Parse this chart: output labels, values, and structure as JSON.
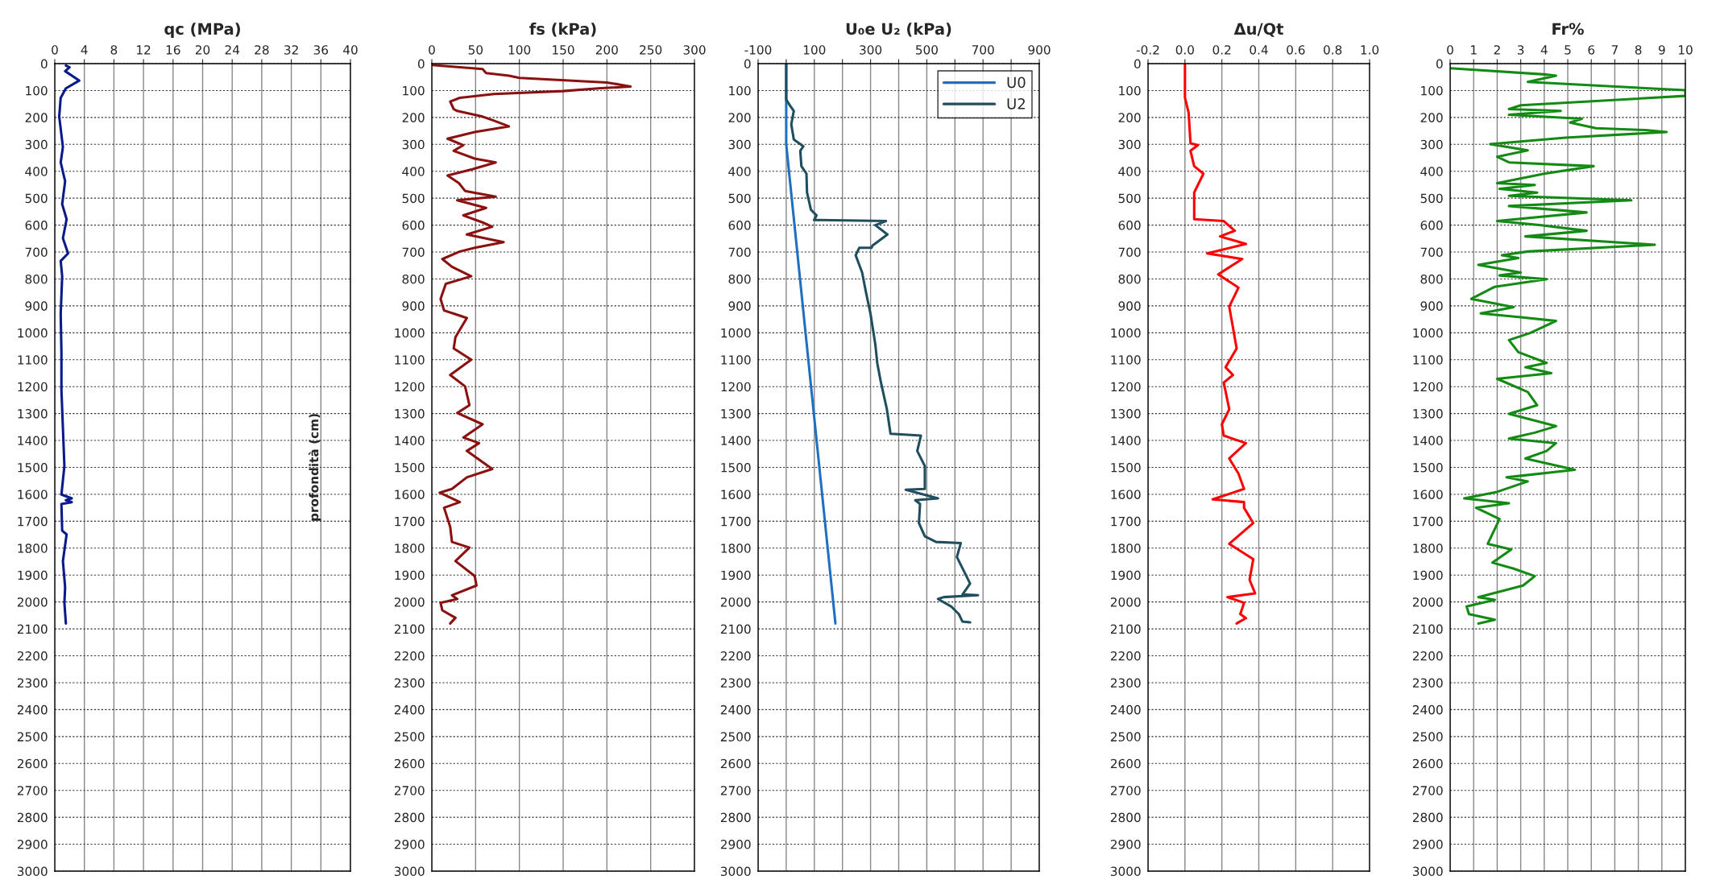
{
  "chart_data": [
    {
      "type": "line",
      "title": "qc (MPa)",
      "ylabel": "profondità (cm)",
      "orientation": "horizontal",
      "grid": true,
      "xlim": [
        0,
        40
      ],
      "xticks": [
        0,
        4,
        8,
        12,
        16,
        20,
        24,
        28,
        32,
        36,
        40
      ],
      "ylim": [
        3000,
        0
      ],
      "yticks": [
        0,
        100,
        200,
        300,
        400,
        500,
        600,
        700,
        800,
        900,
        1000,
        1100,
        1200,
        1300,
        1400,
        1500,
        1600,
        1700,
        1800,
        1900,
        2000,
        2100,
        2200,
        2300,
        2400,
        2500,
        2600,
        2700,
        2800,
        2900,
        3000
      ],
      "series": [
        {
          "color": "#0a1a8a",
          "x": [
            7,
            14,
            28,
            63,
            92,
            127,
            197,
            310,
            367,
            437,
            522,
            578,
            649,
            705,
            733,
            790,
            931,
            1072,
            1213,
            1354,
            1495,
            1601,
            1615,
            1622,
            1629,
            1636,
            1735,
            1749,
            1848,
            1946,
            2003,
            2080
          ],
          "values": [
            1.5,
            2.0,
            1.4,
            3.3,
            1.5,
            0.8,
            0.6,
            1.1,
            0.8,
            1.4,
            1.0,
            1.6,
            1.1,
            1.8,
            0.8,
            1.0,
            0.8,
            0.9,
            0.9,
            1.1,
            1.3,
            0.9,
            2.3,
            1.5,
            2.3,
            0.9,
            1.0,
            1.6,
            1.1,
            1.4,
            1.3,
            1.5
          ]
        }
      ]
    },
    {
      "type": "line",
      "title": "fs (kPa)",
      "orientation": "horizontal",
      "grid": true,
      "xlim": [
        0,
        300
      ],
      "xticks": [
        0,
        50,
        100,
        150,
        200,
        250,
        300
      ],
      "ylim": [
        3000,
        0
      ],
      "yticks": [
        0,
        100,
        200,
        300,
        400,
        500,
        600,
        700,
        800,
        900,
        1000,
        1100,
        1200,
        1300,
        1400,
        1500,
        1600,
        1700,
        1800,
        1900,
        2000,
        2100,
        2200,
        2300,
        2400,
        2500,
        2600,
        2700,
        2800,
        2900,
        3000
      ],
      "series": [
        {
          "color": "#8b1010",
          "x": [
            5,
            20,
            35,
            45,
            53,
            70,
            85,
            92,
            102,
            113,
            127,
            141,
            169,
            176,
            197,
            212,
            233,
            254,
            279,
            303,
            324,
            353,
            367,
            392,
            416,
            444,
            473,
            494,
            508,
            536,
            564,
            590,
            606,
            635,
            663,
            684,
            698,
            726,
            755,
            790,
            818,
            874,
            917,
            931,
            945,
            1016,
            1058,
            1100,
            1157,
            1199,
            1269,
            1298,
            1340,
            1389,
            1410,
            1439,
            1506,
            1537,
            1580,
            1594,
            1629,
            1650,
            1721,
            1777,
            1798,
            1848,
            1904,
            1939,
            1975,
            1989,
            2003,
            2031,
            2059,
            2080
          ],
          "values": [
            0,
            58,
            62,
            88,
            100,
            200,
            227,
            190,
            150,
            71,
            32,
            21,
            25,
            29,
            58,
            71,
            88,
            49,
            18,
            36,
            25,
            49,
            73,
            47,
            18,
            31,
            38,
            73,
            29,
            62,
            36,
            58,
            69,
            40,
            82,
            49,
            32,
            12,
            23,
            45,
            16,
            10,
            14,
            27,
            40,
            27,
            25,
            45,
            21,
            38,
            43,
            29,
            58,
            36,
            54,
            40,
            69,
            40,
            23,
            9,
            32,
            14,
            21,
            23,
            43,
            27,
            49,
            51,
            23,
            29,
            10,
            12,
            27,
            21
          ]
        }
      ]
    },
    {
      "type": "line",
      "title": "U₀e U₂ (kPa)",
      "orientation": "horizontal",
      "grid": true,
      "legend": "top right",
      "xlim": [
        -100,
        900
      ],
      "xticks": [
        -100,
        {
          "value": 0,
          "label": null
        },
        100,
        {
          "value": 200,
          "label": null
        },
        300,
        {
          "value": 400,
          "label": null
        },
        500,
        {
          "value": 600,
          "label": null
        },
        700,
        {
          "value": 800,
          "label": null
        },
        900
      ],
      "ylim": [
        3000,
        0
      ],
      "yticks": [
        0,
        100,
        200,
        300,
        400,
        500,
        600,
        700,
        800,
        900,
        1000,
        1100,
        1200,
        1300,
        1400,
        1500,
        1600,
        1700,
        1800,
        1900,
        2000,
        2100,
        2200,
        2300,
        2400,
        2500,
        2600,
        2700,
        2800,
        2900,
        3000
      ],
      "series": [
        {
          "name": "U0",
          "color": "#1f70c1",
          "x": [
            0,
            300,
            1298,
            2080
          ],
          "values": [
            0,
            0,
            98,
            175
          ]
        },
        {
          "name": "U2",
          "color": "#1f4e5f",
          "x": [
            0,
            134,
            155,
            176,
            226,
            282,
            307,
            324,
            381,
            409,
            479,
            543,
            564,
            581,
            585,
            600,
            635,
            677,
            684,
            684,
            712,
            776,
            846,
            931,
            1044,
            1114,
            1185,
            1284,
            1375,
            1382,
            1439,
            1495,
            1580,
            1583,
            1615,
            1622,
            1636,
            1707,
            1756,
            1777,
            1781,
            1833,
            1904,
            1932,
            1972,
            1975,
            1982,
            1989,
            2017,
            2045,
            2073,
            2076
          ],
          "values": [
            0,
            0,
            13,
            27,
            18,
            27,
            61,
            50,
            54,
            72,
            74,
            88,
            108,
            99,
            355,
            317,
            360,
            306,
            304,
            260,
            247,
            270,
            283,
            300,
            317,
            324,
            337,
            358,
            371,
            479,
            466,
            493,
            493,
            425,
            540,
            459,
            476,
            472,
            493,
            533,
            621,
            607,
            641,
            654,
            627,
            682,
            560,
            540,
            587,
            614,
            627,
            654
          ]
        }
      ]
    },
    {
      "type": "line",
      "title": "Δu/Qt",
      "orientation": "horizontal",
      "grid": true,
      "xlim": [
        -0.2,
        1.0
      ],
      "xticks": [
        -0.2,
        {
          "value": 0,
          "label": "0.0"
        },
        0.2,
        0.4,
        0.6,
        0.8,
        {
          "value": 1,
          "label": "1.0"
        }
      ],
      "ylim": [
        3000,
        0
      ],
      "yticks": [
        0,
        100,
        200,
        300,
        400,
        500,
        600,
        700,
        800,
        900,
        1000,
        1100,
        1200,
        1300,
        1400,
        1500,
        1600,
        1700,
        1800,
        1900,
        2000,
        2100,
        2200,
        2300,
        2400,
        2500,
        2600,
        2700,
        2800,
        2900,
        3000
      ],
      "series": [
        {
          "color": "#ff0000",
          "x": [
            0,
            127,
            183,
            296,
            303,
            324,
            381,
            409,
            479,
            578,
            585,
            621,
            642,
            670,
            705,
            726,
            783,
            832,
            903,
            1058,
            1128,
            1157,
            1185,
            1284,
            1340,
            1382,
            1410,
            1467,
            1523,
            1580,
            1619,
            1629,
            1650,
            1707,
            1784,
            1841,
            1918,
            1968,
            1982,
            2003,
            2045,
            2060,
            2080
          ],
          "values": [
            0,
            0,
            0.02,
            0.03,
            0.07,
            0.03,
            0.05,
            0.1,
            0.05,
            0.05,
            0.21,
            0.27,
            0.19,
            0.33,
            0.12,
            0.31,
            0.18,
            0.29,
            0.24,
            0.28,
            0.22,
            0.26,
            0.21,
            0.24,
            0.2,
            0.21,
            0.33,
            0.24,
            0.29,
            0.32,
            0.15,
            0.32,
            0.32,
            0.37,
            0.24,
            0.37,
            0.35,
            0.38,
            0.23,
            0.32,
            0.3,
            0.33,
            0.28
          ]
        }
      ]
    },
    {
      "type": "line",
      "title": "Fr%",
      "orientation": "horizontal",
      "grid": true,
      "xlim": [
        0,
        10
      ],
      "xticks": [
        0,
        1,
        2,
        3,
        4,
        5,
        6,
        7,
        8,
        9,
        10
      ],
      "ylim": [
        3000,
        0
      ],
      "yticks": [
        0,
        100,
        200,
        300,
        400,
        500,
        600,
        700,
        800,
        900,
        1000,
        1100,
        1200,
        1300,
        1400,
        1500,
        1600,
        1700,
        1800,
        1900,
        2000,
        2100,
        2200,
        2300,
        2400,
        2500,
        2600,
        2700,
        2800,
        2900,
        3000
      ],
      "series": [
        {
          "color": "#138a13",
          "x": [
            17,
            40,
            45,
            68,
            99,
            120,
            155,
            169,
            176,
            190,
            205,
            219,
            240,
            247,
            254,
            275,
            299,
            322,
            346,
            367,
            381,
            409,
            444,
            451,
            465,
            479,
            491,
            508,
            529,
            553,
            585,
            600,
            621,
            642,
            673,
            698,
            712,
            722,
            748,
            776,
            787,
            801,
            829,
            874,
            905,
            928,
            942,
            956,
            1001,
            1027,
            1072,
            1112,
            1128,
            1150,
            1171,
            1220,
            1269,
            1301,
            1347,
            1371,
            1393,
            1410,
            1439,
            1467,
            1509,
            1537,
            1552,
            1591,
            1615,
            1633,
            1650,
            1692,
            1784,
            1805,
            1854,
            1876,
            1904,
            1939,
            1982,
            1992,
            2017,
            2045,
            2066,
            2080
          ],
          "values": [
            0,
            4.0,
            4.5,
            3.3,
            10,
            10,
            3.0,
            2.5,
            4.7,
            2.5,
            5.6,
            5.1,
            6.2,
            8.3,
            9.2,
            4.9,
            1.7,
            3.3,
            2.0,
            2.5,
            6.1,
            4.0,
            2.0,
            3.6,
            2.1,
            3.7,
            2.5,
            7.7,
            2.5,
            5.8,
            2.0,
            3.8,
            5.8,
            3.2,
            8.7,
            3.3,
            2.2,
            2.9,
            1.2,
            3.0,
            2.1,
            4.1,
            1.9,
            0.9,
            2.7,
            1.3,
            3.0,
            4.5,
            3.4,
            2.5,
            2.9,
            4.1,
            3.2,
            4.3,
            2.0,
            3.3,
            3.7,
            2.5,
            4.5,
            3.6,
            2.5,
            4.5,
            4.1,
            3.2,
            5.3,
            2.4,
            3.3,
            2.0,
            0.6,
            2.5,
            1.1,
            2.1,
            1.6,
            2.6,
            1.8,
            2.7,
            3.6,
            3.1,
            1.2,
            1.9,
            0.7,
            0.8,
            1.9,
            1.2
          ]
        }
      ]
    }
  ]
}
